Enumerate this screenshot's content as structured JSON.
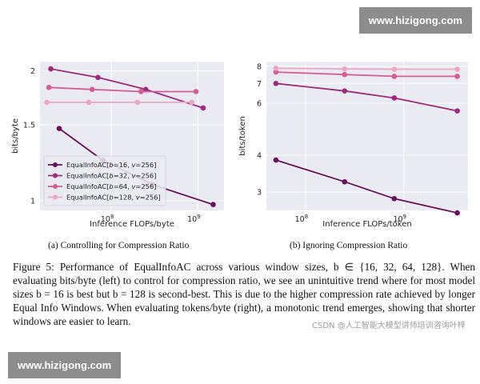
{
  "watermark": {
    "top": "www.hizigong.com",
    "bottom": "www.hizigong.com"
  },
  "chart_data": [
    {
      "type": "line",
      "title": "",
      "xlabel": "Inference FLOPs/byte",
      "ylabel": "bits/byte",
      "xscale": "log",
      "yscale": "log",
      "xlim": [
        15000000,
        2000000000
      ],
      "ylim": [
        0.95,
        2.1
      ],
      "xticks": [
        {
          "v": 100000000,
          "label": "10",
          "exp": "8"
        },
        {
          "v": 1000000000,
          "label": "10",
          "exp": "9"
        }
      ],
      "yticks": [
        {
          "v": 1,
          "label": "1"
        },
        {
          "v": 1.5,
          "label": "1.5"
        },
        {
          "v": 2,
          "label": "2"
        }
      ],
      "grid": true,
      "legend": "lower-left",
      "series": [
        {
          "name": "EqualInfoAC[b=16, v=256]",
          "legend_parts": [
            "EqualInfoAC[",
            "b",
            "=16, ",
            "v",
            "=256]"
          ],
          "color": "#6a0f5e",
          "x": [
            25000000,
            80000000,
            300000000,
            1500000000
          ],
          "y": [
            1.47,
            1.24,
            1.09,
            0.98
          ]
        },
        {
          "name": "EqualInfoAC[b=32, v=256]",
          "legend_parts": [
            "EqualInfoAC[",
            "b",
            "=32, ",
            "v",
            "=256]"
          ],
          "color": "#9c2a80",
          "x": [
            20000000,
            70000000,
            250000000,
            1150000000
          ],
          "y": [
            2.02,
            1.93,
            1.81,
            1.64
          ]
        },
        {
          "name": "EqualInfoAC[b=64, v=256]",
          "legend_parts": [
            "EqualInfoAC[",
            "b",
            "=64, ",
            "v",
            "=256]"
          ],
          "color": "#d65c96",
          "x": [
            19000000,
            60000000,
            220000000,
            950000000
          ],
          "y": [
            1.83,
            1.81,
            1.79,
            1.79
          ]
        },
        {
          "name": "EqualInfoAC[b=128, v=256]",
          "legend_parts": [
            "EqualInfoAC[",
            "b",
            "=128, ",
            "v",
            "=256]"
          ],
          "color": "#eea7c3",
          "x": [
            18000000,
            55000000,
            200000000,
            850000000
          ],
          "y": [
            1.69,
            1.69,
            1.69,
            1.69
          ]
        }
      ]
    },
    {
      "type": "line",
      "title": "",
      "xlabel": "Inference FLOPs/token",
      "ylabel": "bits/token",
      "xscale": "log",
      "yscale": "log",
      "xlim": [
        40000000,
        4500000000
      ],
      "ylim": [
        2.6,
        8.3
      ],
      "xticks": [
        {
          "v": 100000000,
          "label": "10",
          "exp": "8"
        },
        {
          "v": 1000000000,
          "label": "10",
          "exp": "9"
        }
      ],
      "yticks": [
        {
          "v": 3,
          "label": "3"
        },
        {
          "v": 4,
          "label": "4"
        },
        {
          "v": 6,
          "label": "6"
        },
        {
          "v": 7,
          "label": "7"
        },
        {
          "v": 8,
          "label": "8"
        }
      ],
      "grid": true,
      "legend": "",
      "series": [
        {
          "name": "",
          "color": "#6a0f5e",
          "x": [
            50000000,
            250000000,
            800000000,
            3500000000
          ],
          "y": [
            3.85,
            3.25,
            2.85,
            2.55
          ]
        },
        {
          "name": "",
          "color": "#9c2a80",
          "x": [
            50000000,
            250000000,
            800000000,
            3500000000
          ],
          "y": [
            7.0,
            6.6,
            6.25,
            5.65
          ]
        },
        {
          "name": "",
          "color": "#d65c96",
          "x": [
            50000000,
            250000000,
            800000000,
            3500000000
          ],
          "y": [
            7.65,
            7.5,
            7.4,
            7.4
          ]
        },
        {
          "name": "",
          "color": "#eea7c3",
          "x": [
            50000000,
            250000000,
            800000000,
            3500000000
          ],
          "y": [
            7.88,
            7.84,
            7.82,
            7.82
          ]
        }
      ]
    }
  ],
  "subcaptions": {
    "left": "(a) Controlling for Compression Ratio",
    "right": "(b) Ignoring Compression Ratio"
  },
  "figure_caption": "Figure 5: Performance of EqualInfoAC across various window sizes, b ∈ {16, 32, 64, 128}. When evaluating bits/byte (left) to control for compression ratio, we see an unintuitive trend where for most model sizes b = 16 is best but b = 128 is second-best. This is due to the higher compression rate achieved by longer Equal Info Windows. When evaluating tokens/byte (right), a monotonic trend emerges, showing that shorter windows are easier to learn.",
  "csdn_watermark": "CSDN @人工智能大模型讲师培训咨询叶梓"
}
